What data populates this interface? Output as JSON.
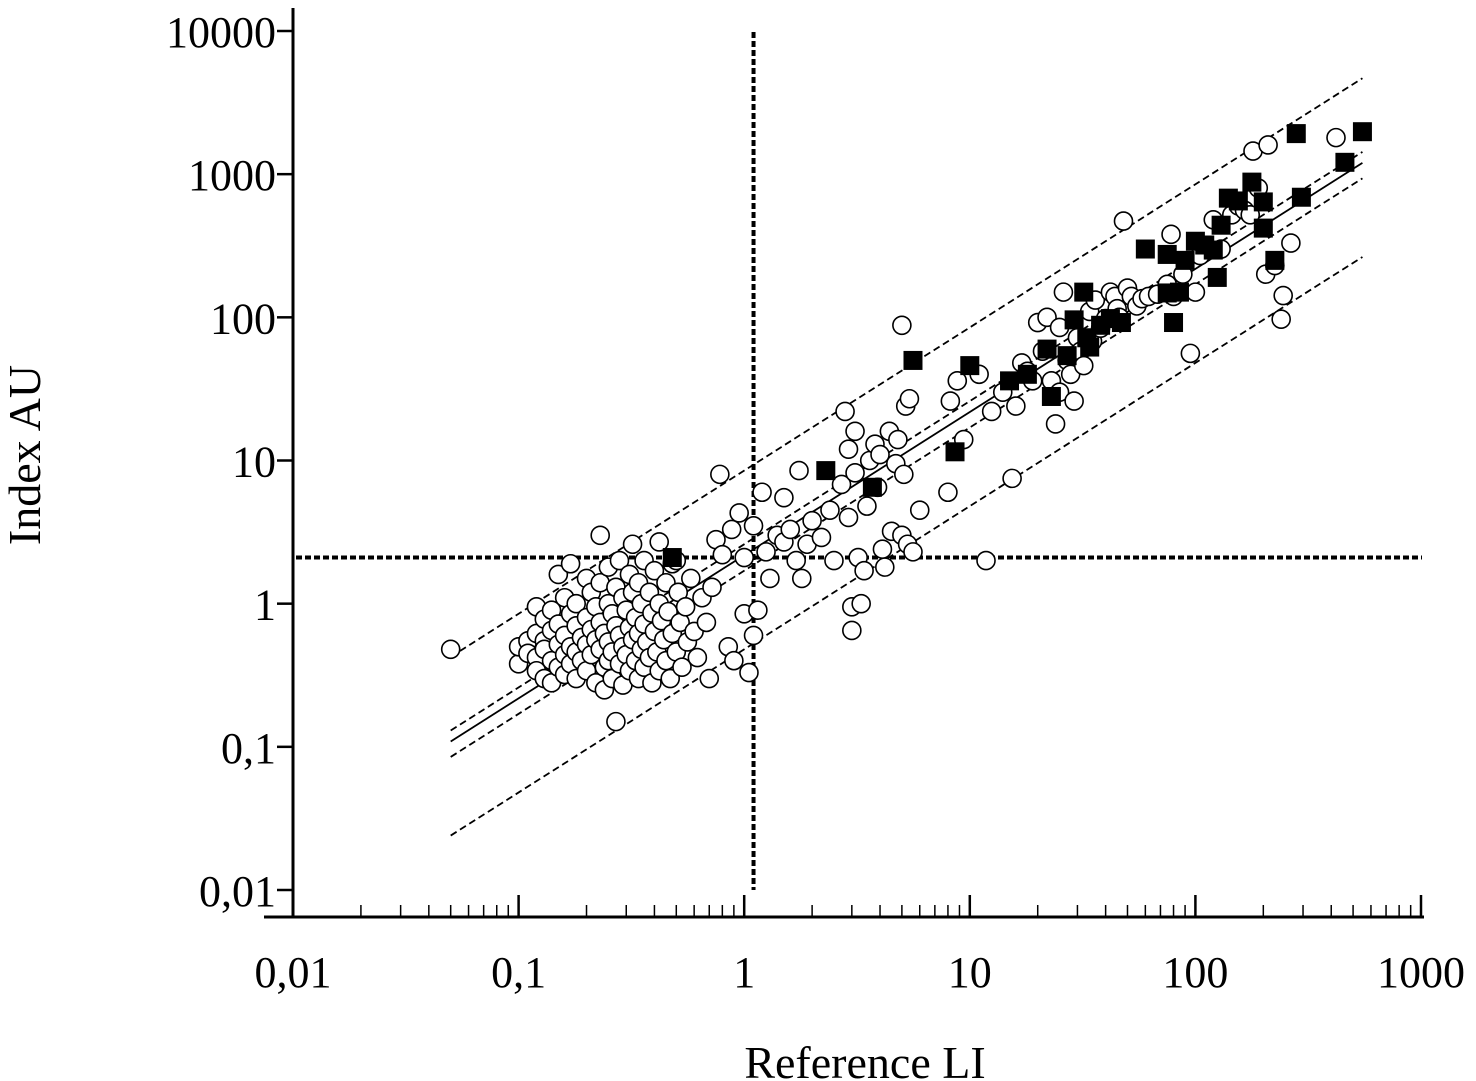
{
  "chart_data": {
    "type": "scatter",
    "title": "",
    "xlabel": "Reference LI",
    "ylabel": "Index AU",
    "x_scale": "log",
    "y_scale": "log",
    "xlim": [
      0.01,
      1000
    ],
    "ylim": [
      0.01,
      10000
    ],
    "x_ticks": [
      {
        "value": 0.01,
        "label": "0,01"
      },
      {
        "value": 0.1,
        "label": "0,1"
      },
      {
        "value": 1,
        "label": "1"
      },
      {
        "value": 10,
        "label": "10"
      },
      {
        "value": 100,
        "label": "100"
      },
      {
        "value": 1000,
        "label": "1000"
      }
    ],
    "y_ticks": [
      {
        "value": 0.01,
        "label": "0,01"
      },
      {
        "value": 0.1,
        "label": "0,1"
      },
      {
        "value": 1,
        "label": "1"
      },
      {
        "value": 10,
        "label": "10"
      },
      {
        "value": 100,
        "label": "100"
      },
      {
        "value": 1000,
        "label": "1000"
      },
      {
        "value": 10000,
        "label": "10000"
      }
    ],
    "grid": false,
    "legend": "none",
    "cutoffs": {
      "x": 1.1,
      "y": 2.1
    },
    "regression": {
      "x_range": [
        0.05,
        550
      ],
      "fit": {
        "intercept": 2.18,
        "slope": 1.0
      },
      "ci": [
        {
          "intercept": 1.7,
          "slope": 1.0
        },
        {
          "intercept": 2.6,
          "slope": 1.0
        }
      ],
      "pi": [
        {
          "intercept": 0.48,
          "slope": 1.0
        },
        {
          "intercept": 8.5,
          "slope": 1.0
        }
      ]
    },
    "series": [
      {
        "marker": "open-circle",
        "color": "#ffffff",
        "points": [
          [
            0.05,
            0.48
          ],
          [
            0.1,
            0.38
          ],
          [
            0.1,
            0.5
          ],
          [
            0.11,
            0.55
          ],
          [
            0.11,
            0.45
          ],
          [
            0.12,
            0.95
          ],
          [
            0.12,
            0.62
          ],
          [
            0.12,
            0.42
          ],
          [
            0.12,
            0.34
          ],
          [
            0.13,
            0.78
          ],
          [
            0.13,
            0.55
          ],
          [
            0.13,
            0.48
          ],
          [
            0.13,
            0.3
          ],
          [
            0.14,
            0.9
          ],
          [
            0.14,
            0.65
          ],
          [
            0.14,
            0.4
          ],
          [
            0.14,
            0.28
          ],
          [
            0.15,
            0.72
          ],
          [
            0.15,
            0.52
          ],
          [
            0.15,
            0.36
          ],
          [
            0.15,
            1.6
          ],
          [
            0.16,
            1.1
          ],
          [
            0.16,
            0.6
          ],
          [
            0.16,
            0.44
          ],
          [
            0.16,
            0.32
          ],
          [
            0.17,
            1.9
          ],
          [
            0.17,
            0.85
          ],
          [
            0.17,
            0.5
          ],
          [
            0.17,
            0.38
          ],
          [
            0.18,
            1.0
          ],
          [
            0.18,
            0.7
          ],
          [
            0.18,
            0.46
          ],
          [
            0.18,
            0.3
          ],
          [
            0.19,
            0.58
          ],
          [
            0.19,
            0.4
          ],
          [
            0.2,
            1.5
          ],
          [
            0.2,
            0.8
          ],
          [
            0.2,
            0.52
          ],
          [
            0.2,
            0.34
          ],
          [
            0.21,
            1.2
          ],
          [
            0.21,
            0.66
          ],
          [
            0.21,
            0.44
          ],
          [
            0.22,
            0.95
          ],
          [
            0.22,
            0.56
          ],
          [
            0.22,
            0.28
          ],
          [
            0.23,
            3.0
          ],
          [
            0.23,
            1.4
          ],
          [
            0.23,
            0.74
          ],
          [
            0.23,
            0.48
          ],
          [
            0.24,
            0.62
          ],
          [
            0.24,
            0.36
          ],
          [
            0.24,
            0.25
          ],
          [
            0.25,
            1.8
          ],
          [
            0.25,
            1.0
          ],
          [
            0.25,
            0.54
          ],
          [
            0.25,
            0.4
          ],
          [
            0.26,
            0.85
          ],
          [
            0.26,
            0.46
          ],
          [
            0.26,
            0.3
          ],
          [
            0.27,
            1.3
          ],
          [
            0.27,
            0.7
          ],
          [
            0.27,
            0.15
          ],
          [
            0.28,
            2.0
          ],
          [
            0.28,
            0.6
          ],
          [
            0.28,
            0.38
          ],
          [
            0.29,
            1.1
          ],
          [
            0.29,
            0.5
          ],
          [
            0.29,
            0.27
          ],
          [
            0.3,
            0.9
          ],
          [
            0.3,
            0.44
          ],
          [
            0.31,
            1.6
          ],
          [
            0.31,
            0.68
          ],
          [
            0.31,
            0.34
          ],
          [
            0.32,
            2.6
          ],
          [
            0.32,
            1.2
          ],
          [
            0.32,
            0.56
          ],
          [
            0.33,
            0.8
          ],
          [
            0.33,
            0.4
          ],
          [
            0.34,
            1.4
          ],
          [
            0.34,
            0.62
          ],
          [
            0.34,
            0.3
          ],
          [
            0.35,
            1.0
          ],
          [
            0.35,
            0.48
          ],
          [
            0.36,
            2.0
          ],
          [
            0.36,
            0.72
          ],
          [
            0.36,
            0.36
          ],
          [
            0.37,
            0.54
          ],
          [
            0.38,
            1.2
          ],
          [
            0.38,
            0.42
          ],
          [
            0.39,
            0.86
          ],
          [
            0.39,
            0.28
          ],
          [
            0.4,
            1.7
          ],
          [
            0.4,
            0.64
          ],
          [
            0.41,
            0.46
          ],
          [
            0.42,
            2.7
          ],
          [
            0.42,
            1.0
          ],
          [
            0.42,
            0.34
          ],
          [
            0.43,
            0.76
          ],
          [
            0.44,
            0.56
          ],
          [
            0.45,
            1.4
          ],
          [
            0.45,
            0.4
          ],
          [
            0.46,
            0.88
          ],
          [
            0.47,
            0.3
          ],
          [
            0.48,
            1.9
          ],
          [
            0.48,
            0.62
          ],
          [
            0.5,
            0.46
          ],
          [
            0.5,
            2.0
          ],
          [
            0.51,
            1.2
          ],
          [
            0.52,
            0.74
          ],
          [
            0.53,
            0.36
          ],
          [
            0.55,
            0.95
          ],
          [
            0.56,
            0.54
          ],
          [
            0.58,
            1.5
          ],
          [
            0.6,
            0.64
          ],
          [
            0.62,
            0.42
          ],
          [
            0.65,
            1.1
          ],
          [
            0.68,
            0.74
          ],
          [
            0.7,
            0.3
          ],
          [
            0.72,
            1.3
          ],
          [
            0.75,
            2.8
          ],
          [
            0.78,
            8.0
          ],
          [
            0.8,
            2.2
          ],
          [
            0.85,
            0.5
          ],
          [
            0.88,
            3.3
          ],
          [
            0.9,
            0.4
          ],
          [
            0.95,
            4.3
          ],
          [
            1.0,
            2.1
          ],
          [
            1.0,
            0.85
          ],
          [
            1.05,
            0.33
          ],
          [
            1.1,
            3.5
          ],
          [
            1.1,
            0.6
          ],
          [
            1.15,
            0.9
          ],
          [
            1.2,
            6.0
          ],
          [
            1.25,
            2.3
          ],
          [
            1.3,
            1.5
          ],
          [
            1.4,
            3.0
          ],
          [
            1.5,
            5.5
          ],
          [
            1.5,
            2.7
          ],
          [
            1.6,
            3.3
          ],
          [
            1.7,
            2.0
          ],
          [
            1.75,
            8.5
          ],
          [
            1.8,
            1.5
          ],
          [
            1.9,
            2.6
          ],
          [
            2.0,
            3.8
          ],
          [
            2.2,
            2.9
          ],
          [
            2.4,
            4.5
          ],
          [
            2.5,
            2.0
          ],
          [
            2.7,
            6.8
          ],
          [
            2.8,
            22
          ],
          [
            2.9,
            12
          ],
          [
            2.9,
            4.0
          ],
          [
            3.0,
            0.65
          ],
          [
            3.0,
            0.95
          ],
          [
            3.1,
            16
          ],
          [
            3.1,
            8.2
          ],
          [
            3.2,
            2.1
          ],
          [
            3.3,
            1.0
          ],
          [
            3.4,
            1.7
          ],
          [
            3.5,
            4.8
          ],
          [
            3.6,
            10
          ],
          [
            3.8,
            13
          ],
          [
            3.9,
            6.5
          ],
          [
            4.0,
            11
          ],
          [
            4.1,
            2.4
          ],
          [
            4.2,
            1.8
          ],
          [
            4.4,
            16
          ],
          [
            4.5,
            3.2
          ],
          [
            4.7,
            9.5
          ],
          [
            4.8,
            14
          ],
          [
            5.0,
            88
          ],
          [
            5.0,
            3.0
          ],
          [
            5.1,
            8.0
          ],
          [
            5.2,
            24
          ],
          [
            5.3,
            2.6
          ],
          [
            5.4,
            27
          ],
          [
            5.6,
            2.3
          ],
          [
            6.0,
            4.5
          ],
          [
            8.0,
            6.0
          ],
          [
            8.2,
            26
          ],
          [
            8.8,
            36
          ],
          [
            9.4,
            14
          ],
          [
            11,
            40
          ],
          [
            11.8,
            2.0
          ],
          [
            12.5,
            22
          ],
          [
            14,
            30
          ],
          [
            15.4,
            7.5
          ],
          [
            16,
            24
          ],
          [
            17,
            48
          ],
          [
            18,
            42
          ],
          [
            19,
            36
          ],
          [
            20,
            92
          ],
          [
            21,
            58
          ],
          [
            22,
            100
          ],
          [
            23,
            36
          ],
          [
            24,
            18
          ],
          [
            25,
            85
          ],
          [
            25,
            30
          ],
          [
            26,
            150
          ],
          [
            27,
            50
          ],
          [
            28,
            40
          ],
          [
            29,
            26
          ],
          [
            30,
            72
          ],
          [
            31,
            58
          ],
          [
            32,
            46
          ],
          [
            34,
            110
          ],
          [
            35,
            68
          ],
          [
            36,
            132
          ],
          [
            38,
            84
          ],
          [
            40,
            98
          ],
          [
            42,
            150
          ],
          [
            44,
            140
          ],
          [
            45,
            115
          ],
          [
            46,
            100
          ],
          [
            48,
            470
          ],
          [
            50,
            160
          ],
          [
            52,
            140
          ],
          [
            55,
            120
          ],
          [
            58,
            135
          ],
          [
            62,
            140
          ],
          [
            68,
            145
          ],
          [
            75,
            170
          ],
          [
            78,
            380
          ],
          [
            80,
            140
          ],
          [
            88,
            200
          ],
          [
            95,
            56
          ],
          [
            100,
            150
          ],
          [
            105,
            270
          ],
          [
            120,
            480
          ],
          [
            130,
            300
          ],
          [
            145,
            520
          ],
          [
            155,
            600
          ],
          [
            165,
            560
          ],
          [
            175,
            520
          ],
          [
            180,
            1450
          ],
          [
            190,
            800
          ],
          [
            205,
            200
          ],
          [
            210,
            1600
          ],
          [
            225,
            230
          ],
          [
            240,
            97
          ],
          [
            245,
            142
          ],
          [
            265,
            330
          ],
          [
            420,
            1800
          ]
        ]
      },
      {
        "marker": "filled-square",
        "color": "#000000",
        "points": [
          [
            0.48,
            2.1
          ],
          [
            2.3,
            8.5
          ],
          [
            3.7,
            6.5
          ],
          [
            5.6,
            50
          ],
          [
            8.6,
            11.5
          ],
          [
            10,
            46
          ],
          [
            15,
            36
          ],
          [
            18,
            40
          ],
          [
            22,
            60
          ],
          [
            23,
            28
          ],
          [
            27,
            54
          ],
          [
            29,
            96
          ],
          [
            32,
            150
          ],
          [
            33,
            72
          ],
          [
            34,
            62
          ],
          [
            38,
            88
          ],
          [
            42,
            98
          ],
          [
            47,
            92
          ],
          [
            60,
            300
          ],
          [
            75,
            275
          ],
          [
            75,
            148
          ],
          [
            80,
            92
          ],
          [
            85,
            150
          ],
          [
            90,
            250
          ],
          [
            100,
            340
          ],
          [
            110,
            320
          ],
          [
            120,
            295
          ],
          [
            125,
            190
          ],
          [
            130,
            440
          ],
          [
            140,
            680
          ],
          [
            155,
            650
          ],
          [
            178,
            880
          ],
          [
            200,
            640
          ],
          [
            200,
            420
          ],
          [
            225,
            250
          ],
          [
            280,
            1920
          ],
          [
            295,
            690
          ],
          [
            460,
            1210
          ],
          [
            550,
            1980
          ]
        ]
      }
    ]
  }
}
